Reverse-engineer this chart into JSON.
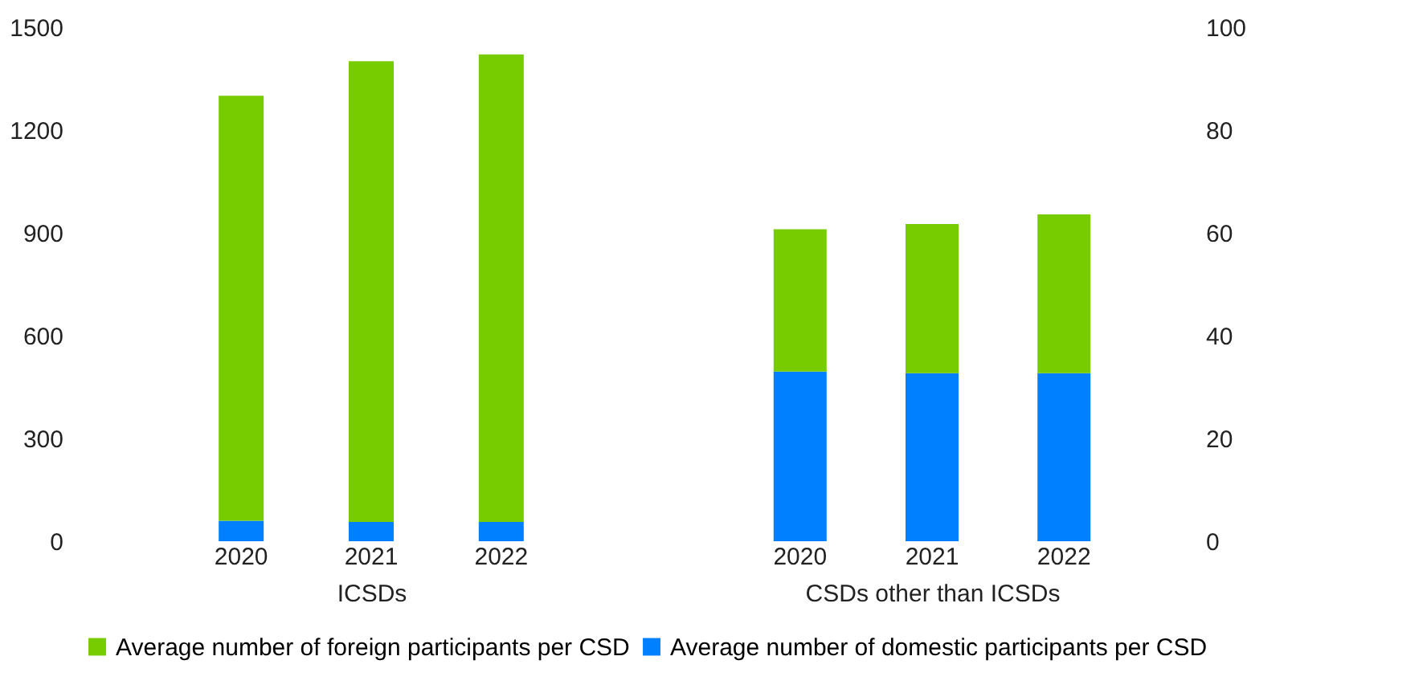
{
  "chart_data": [
    {
      "type": "bar",
      "stacked": true,
      "xlabel": "ICSDs",
      "categories": [
        "2020",
        "2021",
        "2022"
      ],
      "ylim": [
        0,
        1500
      ],
      "yticks": [
        0,
        300,
        600,
        900,
        1200,
        1500
      ],
      "grid": false,
      "legend": "bottom",
      "series": [
        {
          "name": "Average number of domestic participants per CSD",
          "color": "#0080ff",
          "values": [
            60,
            56,
            56
          ]
        },
        {
          "name": "Average number of foreign participants per CSD",
          "color": "#77cc00",
          "values": [
            1240,
            1345,
            1365
          ]
        }
      ]
    },
    {
      "type": "bar",
      "stacked": true,
      "xlabel": "CSDs other than ICSDs",
      "categories": [
        "2020",
        "2021",
        "2022"
      ],
      "y2lim": [
        0,
        100
      ],
      "y2ticks": [
        0,
        20,
        40,
        60,
        80,
        100
      ],
      "grid": false,
      "legend": "bottom",
      "series": [
        {
          "name": "Average number of domestic participants per CSD",
          "color": "#0080ff",
          "axis": "y2",
          "values": [
            33.0,
            32.7,
            32.7
          ]
        },
        {
          "name": "Average number of foreign participants per CSD",
          "color": "#77cc00",
          "axis": "y2",
          "values": [
            27.7,
            29.0,
            30.9
          ]
        }
      ]
    }
  ]
}
